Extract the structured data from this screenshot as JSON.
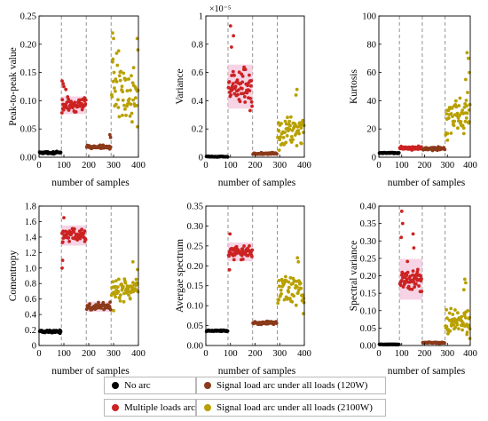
{
  "colors": {
    "no_arc": "#000000",
    "multiple": "#cc2222",
    "signal_120": "#8b3a1a",
    "signal_2100": "#b8a000",
    "halo": "#f3c6dc",
    "divider": "#888888"
  },
  "legend": [
    {
      "label": "No arc",
      "color": "#000000"
    },
    {
      "label": "Signal load arc under all loads (120W)",
      "color": "#8b3a1a"
    },
    {
      "label": "Multiple loads arc",
      "color": "#cc2222"
    },
    {
      "label": "Signal load arc under all loads (2100W)",
      "color": "#b8a000"
    }
  ],
  "chart_data": [
    {
      "type": "scatter",
      "ylabel": "Peak-to-peak value",
      "xlabel": "number of samples",
      "xlim": [
        0,
        400
      ],
      "ylim": [
        0,
        0.25
      ],
      "xticks": [
        "0",
        "100",
        "200",
        "300",
        "400"
      ],
      "yticks": [
        "0.00",
        "0.05",
        "0.10",
        "0.15",
        "0.20",
        "0.25"
      ],
      "multiplier": "",
      "dividers": [
        90,
        190,
        290
      ],
      "series": [
        {
          "name": "No arc",
          "x_range": [
            0,
            90
          ],
          "y_center": 0.008,
          "y_spread": 0.002,
          "points": 60
        },
        {
          "name": "Multiple loads arc",
          "x_range": [
            90,
            190
          ],
          "y_center": 0.092,
          "y_spread": 0.012,
          "points": 60,
          "extras": [
            [
              93,
              0.135
            ],
            [
              97,
              0.13
            ],
            [
              100,
              0.125
            ],
            [
              108,
              0.12
            ],
            [
              183,
              0.105
            ]
          ]
        },
        {
          "name": "Signal load arc under all loads (120W)",
          "x_range": [
            190,
            290
          ],
          "y_center": 0.018,
          "y_spread": 0.003,
          "points": 50,
          "extras": [
            [
              285,
              0.04
            ],
            [
              288,
              0.035
            ]
          ]
        },
        {
          "name": "Signal load arc under all loads (2100W)",
          "x_range": [
            290,
            400
          ],
          "y_center": 0.12,
          "y_spread": 0.065,
          "points": 60,
          "extras": [
            [
              296,
              0.22
            ],
            [
              300,
              0.21
            ],
            [
              395,
              0.21
            ],
            [
              398,
              0.19
            ]
          ]
        }
      ]
    },
    {
      "type": "scatter",
      "ylabel": "Variance",
      "xlabel": "number of samples",
      "xlim": [
        0,
        400
      ],
      "ylim": [
        0,
        1.0
      ],
      "xticks": [
        "0",
        "100",
        "200",
        "300",
        "400"
      ],
      "yticks": [
        "0",
        "0.2",
        "0.4",
        "0.6",
        "0.8",
        "1"
      ],
      "multiplier": "×10⁻⁵",
      "dividers": [
        90,
        190,
        290
      ],
      "series": [
        {
          "name": "No arc",
          "x_range": [
            0,
            90
          ],
          "y_center": 0.004,
          "y_spread": 0.003,
          "points": 60
        },
        {
          "name": "Multiple loads arc",
          "x_range": [
            90,
            190
          ],
          "y_center": 0.5,
          "y_spread": 0.12,
          "points": 60,
          "extras": [
            [
              100,
              0.93
            ],
            [
              104,
              0.78
            ],
            [
              112,
              0.86
            ],
            [
              180,
              0.33
            ]
          ]
        },
        {
          "name": "Signal load arc under all loads (120W)",
          "x_range": [
            190,
            290
          ],
          "y_center": 0.025,
          "y_spread": 0.007,
          "points": 50
        },
        {
          "name": "Signal load arc under all loads (2100W)",
          "x_range": [
            290,
            400
          ],
          "y_center": 0.2,
          "y_spread": 0.11,
          "points": 60,
          "extras": [
            [
              370,
              0.48
            ],
            [
              366,
              0.44
            ],
            [
              298,
              0.05
            ]
          ]
        }
      ]
    },
    {
      "type": "scatter",
      "ylabel": "Kurtosis",
      "xlabel": "number of samples",
      "xlim": [
        0,
        400
      ],
      "ylim": [
        0,
        100
      ],
      "xticks": [
        "0",
        "100",
        "200",
        "300",
        "400"
      ],
      "yticks": [
        "0",
        "20",
        "40",
        "60",
        "80",
        "100"
      ],
      "multiplier": "",
      "dividers": [
        90,
        190,
        290
      ],
      "series": [
        {
          "name": "No arc",
          "x_range": [
            0,
            90
          ],
          "y_center": 3,
          "y_spread": 0.4,
          "points": 60
        },
        {
          "name": "Multiple loads arc",
          "x_range": [
            90,
            190
          ],
          "y_center": 6.5,
          "y_spread": 1.2,
          "points": 60
        },
        {
          "name": "Signal load arc under all loads (120W)",
          "x_range": [
            190,
            290
          ],
          "y_center": 6,
          "y_spread": 1.2,
          "points": 50
        },
        {
          "name": "Signal load arc under all loads (2100W)",
          "x_range": [
            290,
            400
          ],
          "y_center": 30,
          "y_spread": 15,
          "points": 60,
          "extras": [
            [
              386,
              74
            ],
            [
              392,
              70
            ],
            [
              396,
              60
            ],
            [
              380,
              55
            ],
            [
              300,
              12
            ]
          ]
        }
      ]
    },
    {
      "type": "scatter",
      "ylabel": "Comentropy",
      "xlabel": "number of samples",
      "xlim": [
        0,
        400
      ],
      "ylim": [
        0,
        1.8
      ],
      "xticks": [
        "0",
        "100",
        "200",
        "300",
        "400"
      ],
      "yticks": [
        "0",
        "0.2",
        "0.4",
        "0.6",
        "0.8",
        "1.0",
        "1.2",
        "1.4",
        "1.6",
        "1.8"
      ],
      "multiplier": "",
      "dividers": [
        90,
        190,
        290
      ],
      "series": [
        {
          "name": "No arc",
          "x_range": [
            0,
            90
          ],
          "y_center": 0.18,
          "y_spread": 0.02,
          "points": 60
        },
        {
          "name": "Multiple loads arc",
          "x_range": [
            90,
            190
          ],
          "y_center": 1.42,
          "y_spread": 0.1,
          "points": 60,
          "extras": [
            [
              93,
              1.0
            ],
            [
              95,
              1.1
            ],
            [
              100,
              1.65
            ]
          ]
        },
        {
          "name": "Signal load arc under all loads (120W)",
          "x_range": [
            190,
            290
          ],
          "y_center": 0.5,
          "y_spread": 0.05,
          "points": 50
        },
        {
          "name": "Signal load arc under all loads (2100W)",
          "x_range": [
            290,
            400
          ],
          "y_center": 0.72,
          "y_spread": 0.16,
          "points": 60,
          "extras": [
            [
              378,
              1.08
            ],
            [
              396,
              0.98
            ],
            [
              300,
              0.45
            ]
          ]
        }
      ]
    },
    {
      "type": "scatter",
      "ylabel": "Avergae spectrum",
      "xlabel": "number of samples",
      "xlim": [
        0,
        400
      ],
      "ylim": [
        0,
        0.35
      ],
      "xticks": [
        "0",
        "100",
        "200",
        "300",
        "400"
      ],
      "yticks": [
        "0.00",
        "0.05",
        "0.10",
        "0.15",
        "0.20",
        "0.25",
        "0.30",
        "0.35"
      ],
      "multiplier": "",
      "dividers": [
        90,
        190,
        290
      ],
      "series": [
        {
          "name": "No arc",
          "x_range": [
            0,
            90
          ],
          "y_center": 0.037,
          "y_spread": 0.002,
          "points": 60
        },
        {
          "name": "Multiple loads arc",
          "x_range": [
            90,
            190
          ],
          "y_center": 0.235,
          "y_spread": 0.018,
          "points": 60,
          "extras": [
            [
              96,
              0.19
            ],
            [
              98,
              0.28
            ]
          ]
        },
        {
          "name": "Signal load arc under all loads (120W)",
          "x_range": [
            190,
            290
          ],
          "y_center": 0.057,
          "y_spread": 0.004,
          "points": 50
        },
        {
          "name": "Signal load arc under all loads (2100W)",
          "x_range": [
            290,
            400
          ],
          "y_center": 0.14,
          "y_spread": 0.04,
          "points": 60,
          "extras": [
            [
              372,
              0.22
            ],
            [
              376,
              0.21
            ],
            [
              396,
              0.08
            ]
          ]
        }
      ]
    },
    {
      "type": "scatter",
      "ylabel": "Spectral variance",
      "xlabel": "number of samples",
      "xlim": [
        0,
        400
      ],
      "ylim": [
        0,
        0.4
      ],
      "xticks": [
        "0",
        "100",
        "200",
        "300",
        "400"
      ],
      "yticks": [
        "0.00",
        "0.05",
        "0.10",
        "0.15",
        "0.20",
        "0.25",
        "0.30",
        "0.35",
        "0.40"
      ],
      "multiplier": "",
      "dividers": [
        90,
        190,
        290
      ],
      "series": [
        {
          "name": "No arc",
          "x_range": [
            0,
            90
          ],
          "y_center": 0.003,
          "y_spread": 0.001,
          "points": 60
        },
        {
          "name": "Multiple loads arc",
          "x_range": [
            90,
            190
          ],
          "y_center": 0.19,
          "y_spread": 0.045,
          "points": 60,
          "extras": [
            [
              100,
              0.385
            ],
            [
              104,
              0.35
            ],
            [
              98,
              0.31
            ],
            [
              150,
              0.32
            ],
            [
              153,
              0.28
            ]
          ]
        },
        {
          "name": "Signal load arc under all loads (120W)",
          "x_range": [
            190,
            290
          ],
          "y_center": 0.008,
          "y_spread": 0.002,
          "points": 50
        },
        {
          "name": "Signal load arc under all loads (2100W)",
          "x_range": [
            290,
            400
          ],
          "y_center": 0.07,
          "y_spread": 0.04,
          "points": 60,
          "extras": [
            [
              376,
              0.19
            ],
            [
              380,
              0.18
            ],
            [
              372,
              0.16
            ],
            [
              398,
              0.02
            ]
          ]
        }
      ]
    }
  ]
}
